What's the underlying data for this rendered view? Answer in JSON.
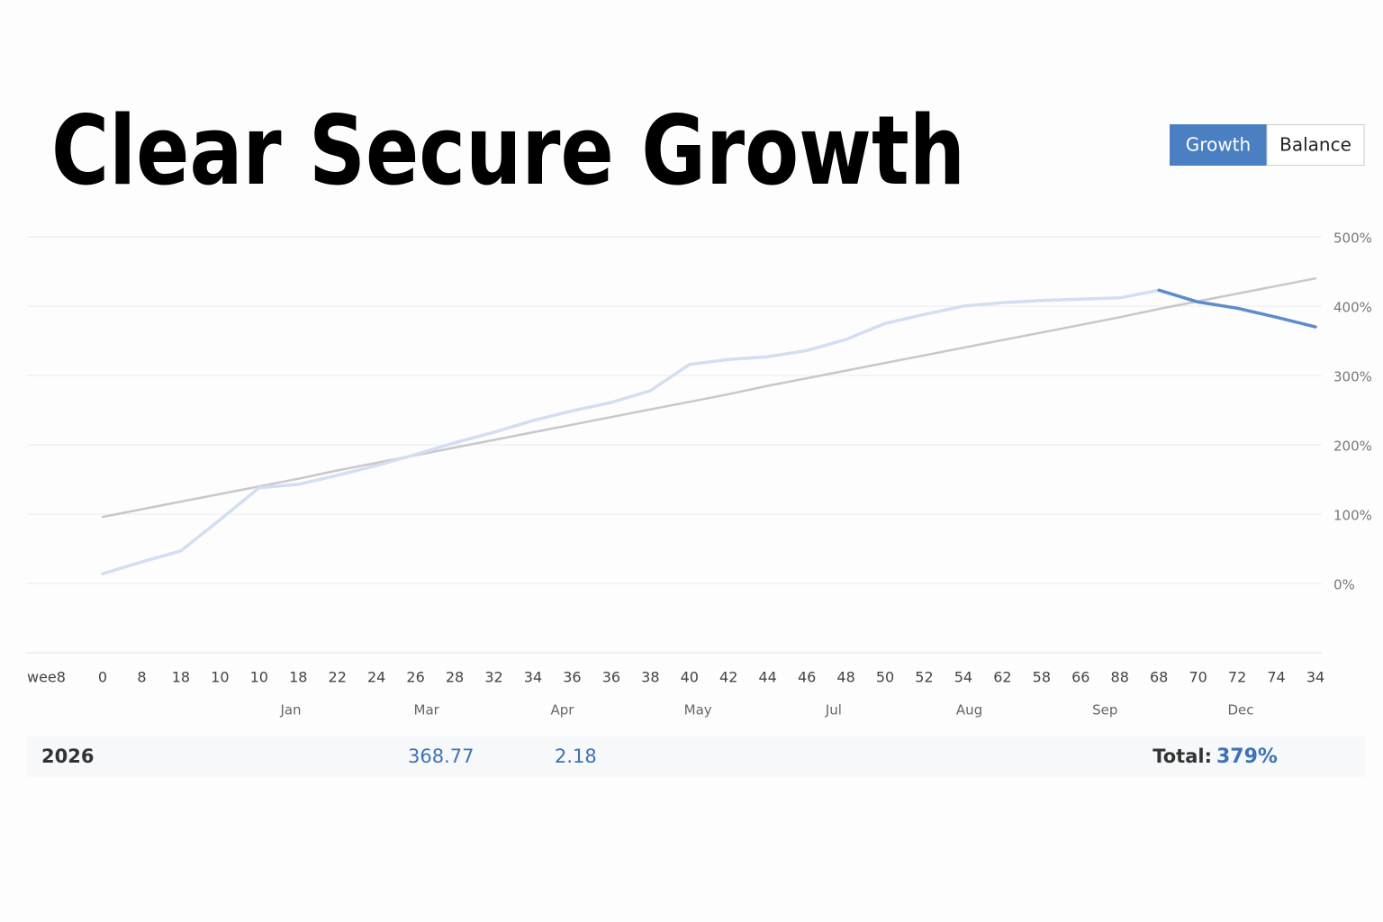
{
  "chart_data": {
    "type": "line",
    "title": "Clear Secure Growth",
    "toggle": [
      "Growth",
      "Balance"
    ],
    "x_label": "wee8",
    "categories": [
      "0",
      "8",
      "18",
      "10",
      "10",
      "18",
      "22",
      "24",
      "26",
      "28",
      "32",
      "34",
      "36",
      "36",
      "38",
      "40",
      "42",
      "44",
      "46",
      "48",
      "50",
      "52",
      "54",
      "62",
      "58",
      "66",
      "88",
      "68",
      "70",
      "72",
      "74",
      "34"
    ],
    "month_labels": [
      "Jan",
      "Mar",
      "Apr",
      "May",
      "Jul",
      "Aug",
      "Sep",
      "Dec"
    ],
    "series": [
      {
        "color": "#d3def2",
        "values": [
          14,
          31,
          47,
          92,
          138,
          143,
          156,
          170,
          186,
          203,
          218,
          235,
          249,
          261,
          278,
          316,
          323,
          327,
          336,
          352,
          375,
          388,
          400,
          405,
          408,
          410,
          412,
          423,
          null,
          null,
          null,
          null
        ]
      },
      {
        "color": "#5b8ccc",
        "values": [
          null,
          null,
          null,
          null,
          null,
          null,
          null,
          null,
          null,
          null,
          null,
          null,
          null,
          null,
          null,
          null,
          null,
          null,
          null,
          null,
          null,
          null,
          null,
          null,
          null,
          null,
          null,
          423,
          406,
          397,
          384,
          370
        ]
      },
      {
        "color": "#c8c8c8",
        "values": [
          96,
          107,
          118,
          129,
          140,
          151,
          163,
          174,
          185,
          196,
          207,
          218,
          229,
          240,
          251,
          262,
          273,
          285,
          296,
          307,
          318,
          329,
          340,
          351,
          362,
          373,
          384,
          396,
          407,
          418,
          429,
          440
        ]
      }
    ],
    "ylim": [
      -100,
      500
    ],
    "yticks": [
      {
        "value": 500,
        "label": "500%"
      },
      {
        "value": 400,
        "label": "400%"
      },
      {
        "value": 300,
        "label": "300%"
      },
      {
        "value": 200,
        "label": "200%"
      },
      {
        "value": 100,
        "label": "100%"
      },
      {
        "value": 0,
        "label": "0%"
      }
    ],
    "grid": true,
    "footer": {
      "year": "2026",
      "values": [
        "368.77",
        "2.18"
      ],
      "total_label": "Total:",
      "total_value": "379%"
    }
  }
}
